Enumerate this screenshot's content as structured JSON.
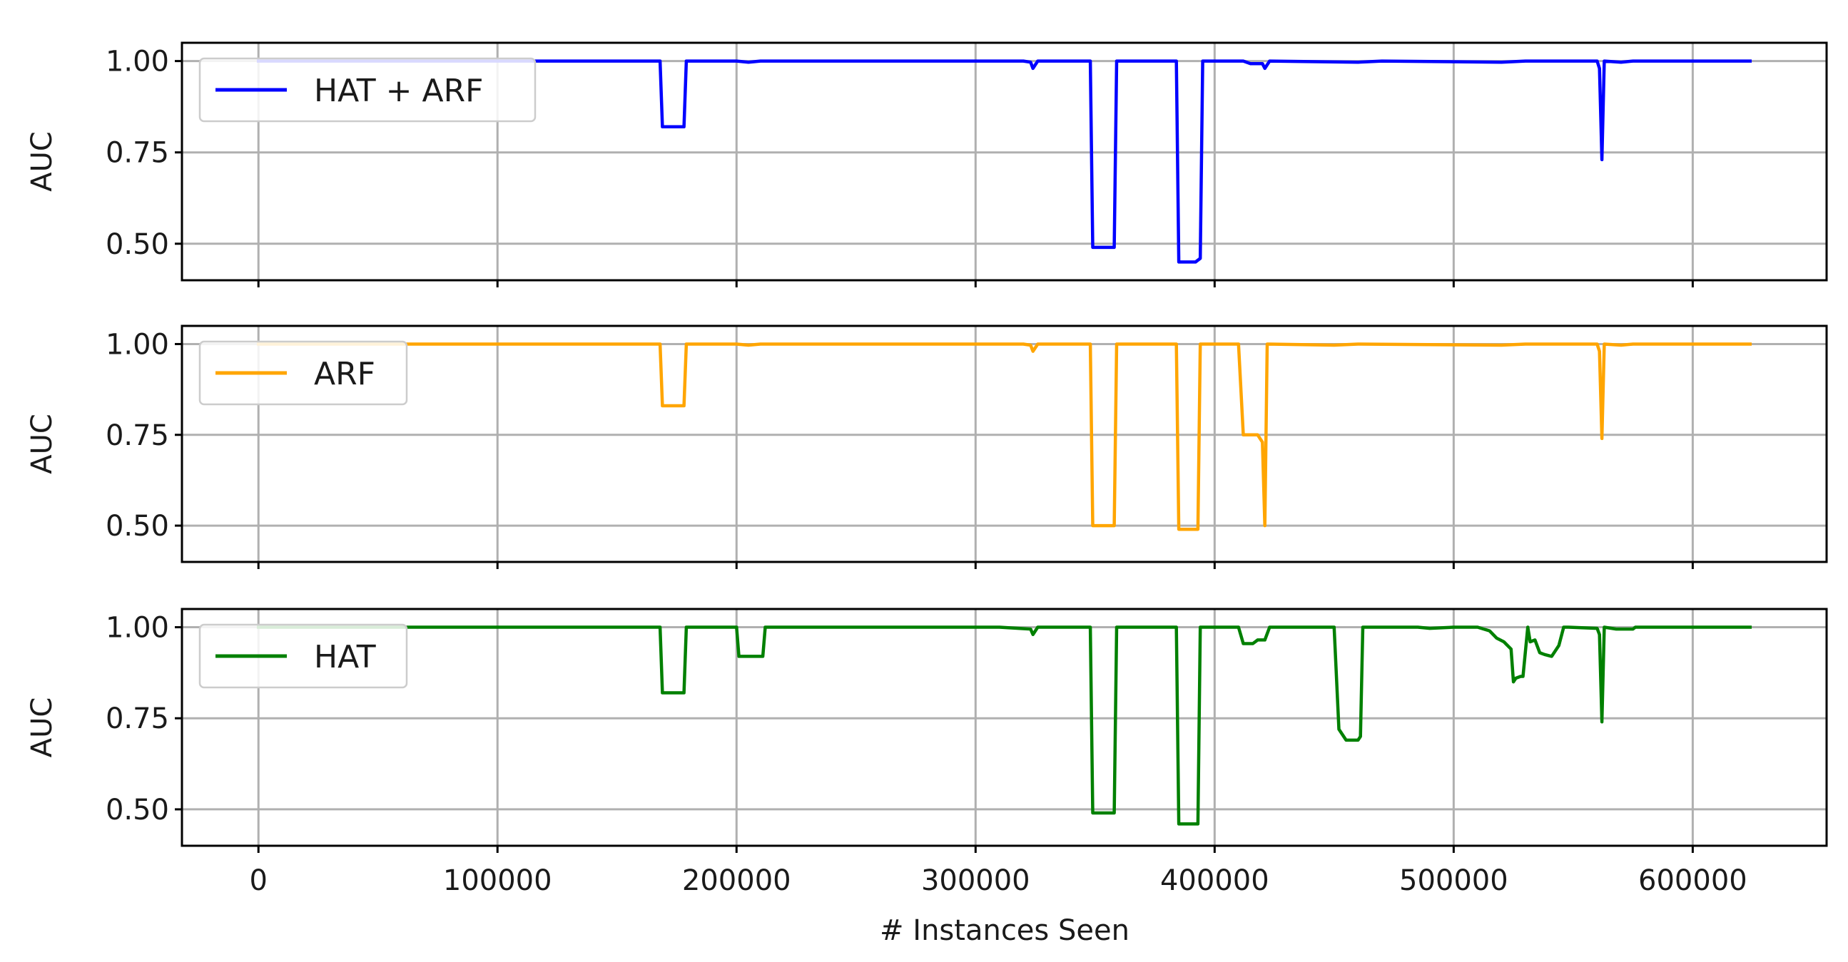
{
  "chart_data": {
    "type": "line",
    "xlabel": "# Instances Seen",
    "xlim": [
      -32000,
      656000
    ],
    "xticks": [
      0,
      100000,
      200000,
      300000,
      400000,
      500000,
      600000
    ],
    "xtick_labels": [
      "0",
      "100000",
      "200000",
      "300000",
      "400000",
      "500000",
      "600000"
    ],
    "grid": true,
    "legend_placement": "upper-left",
    "panels": [
      {
        "id": "hat-arf",
        "ylabel": "AUC",
        "ylim": [
          0.4,
          1.05
        ],
        "yticks": [
          0.5,
          0.75,
          1.0
        ],
        "ytick_labels": [
          "0.50",
          "0.75",
          "1.00"
        ],
        "series": [
          {
            "name": "HAT + ARF",
            "color": "#0000ff",
            "x": [
              0,
              168000,
              169000,
              178000,
              179000,
              200000,
              205000,
              210000,
              320000,
              323000,
              324000,
              326000,
              348000,
              349000,
              358000,
              359000,
              384000,
              385000,
              392000,
              394000,
              395000,
              412000,
              415000,
              420000,
              421000,
              423000,
              460000,
              470000,
              520000,
              530000,
              560000,
              561000,
              562000,
              563000,
              570000,
              575000,
              624000
            ],
            "values": [
              1.0,
              1.0,
              0.82,
              0.82,
              1.0,
              1.0,
              0.997,
              1.0,
              1.0,
              0.997,
              0.98,
              1.0,
              1.0,
              0.49,
              0.49,
              1.0,
              1.0,
              0.45,
              0.45,
              0.46,
              1.0,
              1.0,
              0.993,
              0.993,
              0.98,
              1.0,
              0.997,
              1.0,
              0.997,
              1.0,
              1.0,
              0.98,
              0.73,
              1.0,
              0.997,
              1.0,
              1.0
            ]
          }
        ]
      },
      {
        "id": "arf",
        "ylabel": "AUC",
        "ylim": [
          0.4,
          1.05
        ],
        "yticks": [
          0.5,
          0.75,
          1.0
        ],
        "ytick_labels": [
          "0.50",
          "0.75",
          "1.00"
        ],
        "series": [
          {
            "name": "ARF",
            "color": "#ffa500",
            "x": [
              0,
              168000,
              169000,
              178000,
              179000,
              200000,
              205000,
              210000,
              320000,
              323000,
              324000,
              326000,
              348000,
              349000,
              358000,
              359000,
              384000,
              385000,
              393000,
              394000,
              410000,
              412000,
              418000,
              420000,
              421000,
              422000,
              450000,
              460000,
              520000,
              530000,
              560000,
              561000,
              562000,
              563000,
              570000,
              575000,
              624000
            ],
            "values": [
              1.0,
              1.0,
              0.83,
              0.83,
              1.0,
              1.0,
              0.997,
              1.0,
              1.0,
              0.997,
              0.98,
              1.0,
              1.0,
              0.5,
              0.5,
              1.0,
              1.0,
              0.49,
              0.49,
              1.0,
              1.0,
              0.75,
              0.75,
              0.73,
              0.5,
              1.0,
              0.997,
              1.0,
              0.997,
              1.0,
              1.0,
              0.98,
              0.74,
              1.0,
              0.997,
              1.0,
              1.0
            ]
          }
        ]
      },
      {
        "id": "hat",
        "ylabel": "AUC",
        "ylim": [
          0.4,
          1.05
        ],
        "yticks": [
          0.5,
          0.75,
          1.0
        ],
        "ytick_labels": [
          "0.50",
          "0.75",
          "1.00"
        ],
        "series": [
          {
            "name": "HAT",
            "color": "#008000",
            "x": [
              0,
              168000,
              169000,
              178000,
              179000,
              200000,
              201000,
              211000,
              212000,
              310000,
              318000,
              323000,
              324000,
              326000,
              348000,
              349000,
              358000,
              359000,
              384000,
              385000,
              393000,
              394000,
              410000,
              412000,
              416000,
              418000,
              421000,
              423000,
              450000,
              452000,
              455000,
              460000,
              461000,
              462000,
              485000,
              490000,
              500000,
              510000,
              515000,
              518000,
              521000,
              524000,
              525000,
              526000,
              528000,
              529000,
              531000,
              532000,
              534000,
              536000,
              538000,
              541000,
              542000,
              544000,
              546000,
              548000,
              560000,
              561000,
              562000,
              563000,
              568000,
              575000,
              576000,
              624000
            ],
            "values": [
              1.0,
              1.0,
              0.82,
              0.82,
              1.0,
              1.0,
              0.92,
              0.92,
              1.0,
              1.0,
              0.997,
              0.995,
              0.98,
              1.0,
              1.0,
              0.49,
              0.49,
              1.0,
              1.0,
              0.46,
              0.46,
              1.0,
              1.0,
              0.955,
              0.955,
              0.965,
              0.965,
              1.0,
              1.0,
              0.72,
              0.69,
              0.69,
              0.7,
              1.0,
              1.0,
              0.997,
              1.0,
              1.0,
              0.99,
              0.97,
              0.96,
              0.94,
              0.85,
              0.86,
              0.865,
              0.865,
              1.0,
              0.96,
              0.965,
              0.93,
              0.925,
              0.92,
              0.93,
              0.95,
              1.0,
              1.0,
              0.997,
              0.98,
              0.74,
              1.0,
              0.995,
              0.995,
              1.0,
              1.0
            ]
          }
        ]
      }
    ]
  }
}
